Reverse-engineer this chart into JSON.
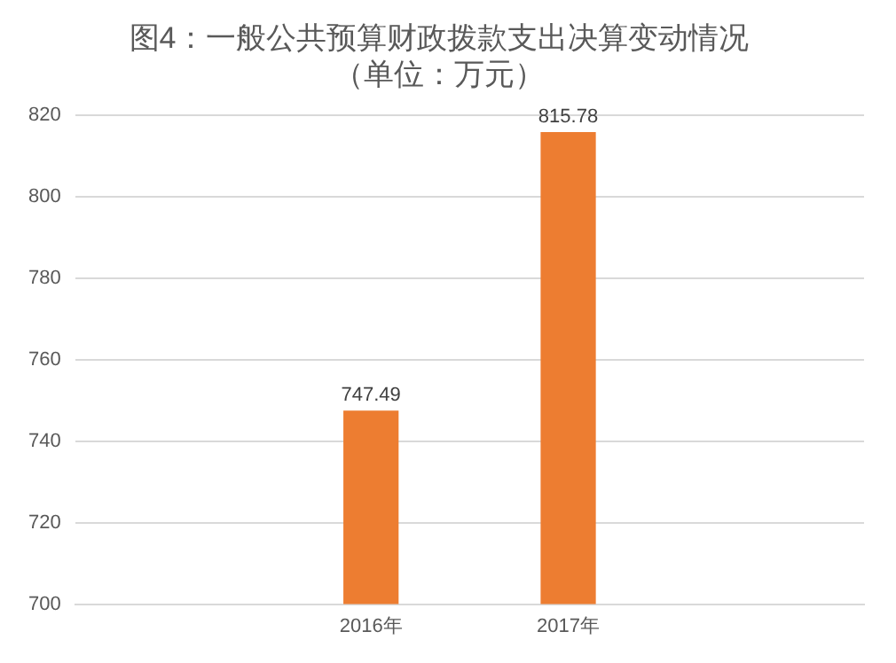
{
  "chart_data": {
    "type": "bar",
    "title": "图4：一般公共预算财政拨款支出决算变动情况",
    "subtitle": "（单位：万元）",
    "categories": [
      null,
      "2016年",
      "2017年",
      null
    ],
    "values": [
      null,
      747.49,
      815.78,
      null
    ],
    "color": "#ed7d31",
    "ylim": [
      700,
      820
    ],
    "yticks": [
      700,
      720,
      740,
      760,
      780,
      800,
      820
    ],
    "grid": "y",
    "data_labels": true,
    "legend": false
  }
}
